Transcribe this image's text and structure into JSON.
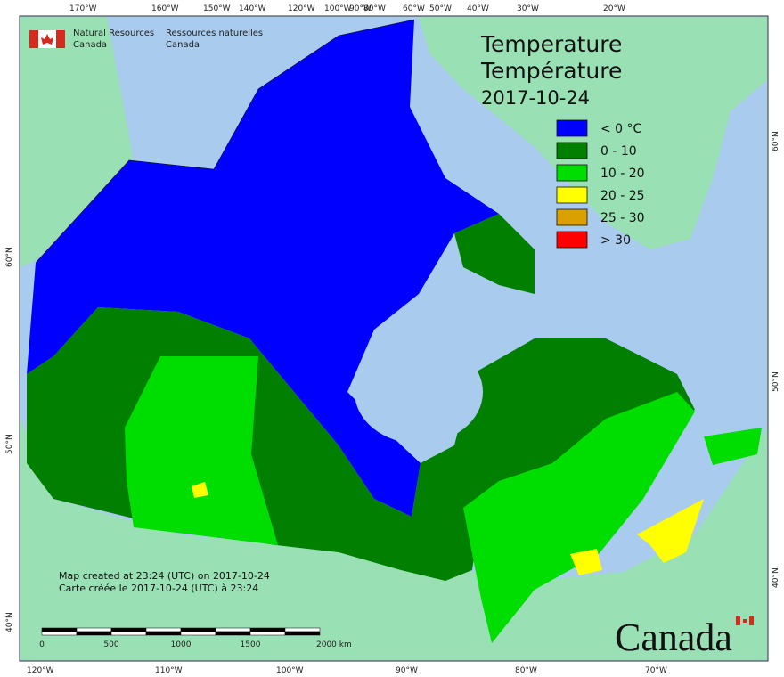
{
  "header": {
    "agency_en_1": "Natural Resources",
    "agency_en_2": "Canada",
    "agency_fr_1": "Ressources naturelles",
    "agency_fr_2": "Canada"
  },
  "title": {
    "en": "Temperature",
    "fr": "Température",
    "date": "2017-10-24"
  },
  "legend": [
    {
      "label": "< 0 °C",
      "color": "#0000ff"
    },
    {
      "label": "0 - 10",
      "color": "#007f00"
    },
    {
      "label": "10 - 20",
      "color": "#00dd00"
    },
    {
      "label": "20 - 25",
      "color": "#ffff00"
    },
    {
      "label": "25 - 30",
      "color": "#d9a000"
    },
    {
      "label": "> 30",
      "color": "#ff0000"
    }
  ],
  "graticule": {
    "top": [
      "170°W",
      "160°W",
      "150°W",
      "140°W",
      "120°W",
      "100°W",
      "90°W",
      "80°W",
      "60°W",
      "50°W",
      "40°W",
      "30°W",
      "20°W"
    ],
    "bottom": [
      "120°W",
      "110°W",
      "100°W",
      "90°W",
      "80°W",
      "70°W"
    ],
    "left": [
      "60°N",
      "50°N",
      "40°N"
    ],
    "right": [
      "60°N",
      "50°N",
      "40°N"
    ]
  },
  "scale_bar": [
    "0",
    "500",
    "1000",
    "1500",
    "2000 km"
  ],
  "credits": [
    "Map created at 23:24 (UTC) on 2017-10-24",
    "Carte créée le 2017-10-24 (UTC) à 23:24"
  ],
  "wordmark": "Canada"
}
